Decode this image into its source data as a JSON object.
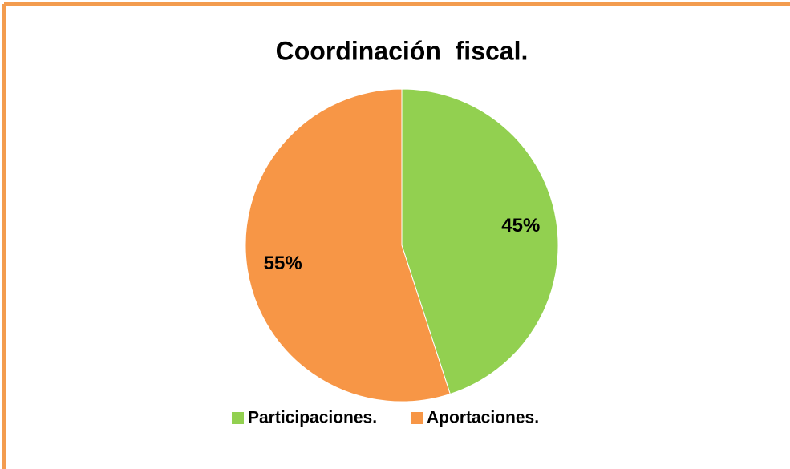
{
  "chart_data": {
    "type": "pie",
    "title": "Coordinación  fiscal.",
    "categories": [
      "Participaciones.",
      "Aportaciones."
    ],
    "values": [
      45,
      55
    ],
    "value_labels": [
      "45%",
      "55%"
    ],
    "colors": [
      "#92d050",
      "#f79646"
    ],
    "legend": "bottom"
  }
}
